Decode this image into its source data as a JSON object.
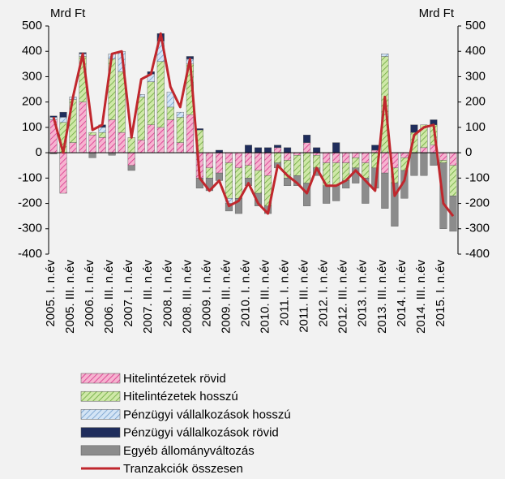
{
  "chart_data": {
    "type": "bar",
    "stacked": true,
    "y_label_left": "Mrd Ft",
    "y_label_right": "Mrd Ft",
    "ylim": [
      -400,
      500
    ],
    "yticks": [
      -400,
      -300,
      -200,
      -100,
      0,
      100,
      200,
      300,
      400,
      500
    ],
    "y2lim": [
      -400,
      500
    ],
    "y2ticks": [
      -400,
      -300,
      -200,
      -100,
      0,
      100,
      200,
      300,
      400,
      500
    ],
    "categories": [
      "2005. I. n.év",
      null,
      "2005. III. n.év",
      null,
      "2006. I. n.év",
      null,
      "2006. III. n.év",
      null,
      "2007. I. n.év",
      null,
      "2007. III. n.év",
      null,
      "2008. I. n.év",
      null,
      "2008. III. n.év",
      null,
      "2009. I. n.év",
      null,
      "2009. III. n.év",
      null,
      "2010. I. n.év",
      null,
      "2010. III. n.év",
      null,
      "2011. I. n.év",
      null,
      "2011. III. n.év",
      null,
      "2012. I. n.év",
      null,
      "2012. III. n.év",
      null,
      "2013. I. n.év",
      null,
      "2013. III. n.év",
      null,
      "2014. I. n.év",
      null,
      "2014. III. n.év",
      null,
      "2015. I. n.év",
      null
    ],
    "series": [
      {
        "name": "Hitelintézetek rövid",
        "color": "#f6b3d0",
        "hatch": "#d6338a",
        "values": [
          130,
          -160,
          40,
          200,
          70,
          60,
          130,
          80,
          -50,
          50,
          110,
          100,
          130,
          40,
          150,
          -100,
          -60,
          -80,
          -40,
          -60,
          -50,
          -70,
          -90,
          20,
          -30,
          -10,
          40,
          -10,
          -40,
          -40,
          -40,
          -20,
          -40,
          10,
          -80,
          -60,
          -20,
          0,
          20,
          30,
          -30,
          -50
        ]
      },
      {
        "name": "Hitelintézetek hosszú",
        "color": "#cfe8a8",
        "hatch": "#6aa83a",
        "values": [
          0,
          120,
          170,
          180,
          10,
          20,
          240,
          240,
          60,
          170,
          170,
          260,
          50,
          100,
          200,
          90,
          -40,
          0,
          -140,
          -120,
          -50,
          -90,
          -120,
          -40,
          -70,
          -80,
          -120,
          -50,
          -90,
          -90,
          -70,
          -40,
          -60,
          -60,
          380,
          -60,
          -50,
          80,
          90,
          80,
          -10,
          -120
        ]
      },
      {
        "name": "Pénzügyi vállalkozások hosszú",
        "color": "#d3e4f5",
        "hatch": "#6f9ccc",
        "values": [
          10,
          20,
          10,
          10,
          0,
          20,
          20,
          80,
          0,
          10,
          30,
          80,
          60,
          20,
          20,
          0,
          0,
          0,
          -20,
          0,
          0,
          0,
          0,
          0,
          0,
          0,
          0,
          0,
          0,
          0,
          0,
          0,
          0,
          0,
          10,
          0,
          0,
          0,
          0,
          0,
          0,
          0
        ]
      },
      {
        "name": "Pénzügyi vállalkozások rövid",
        "color": "#1f2d5c",
        "values": [
          5,
          20,
          0,
          5,
          0,
          10,
          0,
          0,
          0,
          0,
          10,
          30,
          0,
          0,
          10,
          5,
          0,
          10,
          0,
          0,
          30,
          20,
          20,
          10,
          20,
          0,
          30,
          20,
          0,
          40,
          0,
          0,
          0,
          20,
          0,
          0,
          0,
          30,
          0,
          20,
          0,
          0
        ]
      },
      {
        "name": "Egyéb állományváltozás",
        "color": "#8c8c8c",
        "values": [
          -5,
          0,
          0,
          0,
          -20,
          0,
          -10,
          0,
          -20,
          0,
          0,
          0,
          0,
          0,
          0,
          -40,
          -50,
          -30,
          -30,
          -60,
          -30,
          -50,
          -30,
          -20,
          -30,
          -40,
          -90,
          -30,
          -70,
          -60,
          -30,
          -60,
          -100,
          -80,
          -140,
          -170,
          -110,
          -90,
          -90,
          -50,
          -260,
          -140
        ]
      },
      {
        "name": "Tranzakciók összesen",
        "type": "line",
        "color": "#c0272d",
        "values": [
          140,
          0,
          220,
          390,
          90,
          110,
          390,
          400,
          60,
          290,
          310,
          470,
          260,
          180,
          370,
          -100,
          -150,
          -110,
          -210,
          -190,
          -120,
          -200,
          -240,
          -50,
          -90,
          -120,
          -160,
          -60,
          -130,
          -130,
          -110,
          -70,
          -110,
          -150,
          220,
          -170,
          -110,
          70,
          100,
          110,
          -200,
          -250
        ]
      }
    ]
  }
}
